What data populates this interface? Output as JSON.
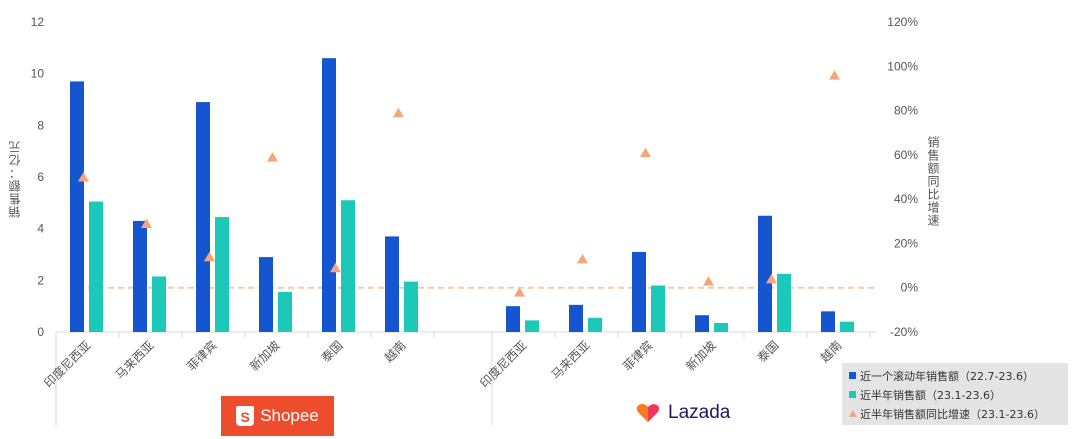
{
  "chart_data": {
    "type": "bar",
    "groups": [
      {
        "name": "Shopee",
        "categories": [
          "印度尼西亚",
          "马来西亚",
          "菲律宾",
          "新加坡",
          "泰国",
          "越南"
        ],
        "rolling_sales": [
          9.7,
          4.3,
          8.9,
          2.9,
          10.6,
          3.7
        ],
        "half_year_sales": [
          5.05,
          2.15,
          4.45,
          1.55,
          5.1,
          1.95
        ],
        "growth_pct": [
          50,
          29,
          14,
          59,
          9,
          79
        ]
      },
      {
        "name": "Lazada",
        "categories": [
          "印度尼西亚",
          "马来西亚",
          "菲律宾",
          "新加坡",
          "泰国",
          "越南"
        ],
        "rolling_sales": [
          1.0,
          1.05,
          3.1,
          0.65,
          4.5,
          0.8
        ],
        "half_year_sales": [
          0.45,
          0.55,
          1.8,
          0.35,
          2.25,
          0.4
        ],
        "growth_pct": [
          -2,
          13,
          61,
          3,
          4,
          96
        ]
      }
    ],
    "series": [
      {
        "name": "近一个滚动年销售额（22.7-23.6）",
        "key": "rolling_sales",
        "color": "#1555d0",
        "kind": "bar"
      },
      {
        "name": "近半年销售额（23.1-23.6）",
        "key": "half_year_sales",
        "color": "#1cc8b8",
        "kind": "bar"
      },
      {
        "name": "近半年销售额同比增速（23.1-23.6）",
        "key": "growth_pct",
        "color": "#f4a77a",
        "kind": "scatter"
      }
    ],
    "ylabel": "销售额：亿元",
    "y2label": "销售额同比增速",
    "ylim": [
      0,
      12
    ],
    "yticks": [
      "0",
      "2",
      "4",
      "6",
      "8",
      "10",
      "12"
    ],
    "y2lim": [
      -20,
      120
    ],
    "y2ticks": [
      "-20%",
      "0%",
      "20%",
      "40%",
      "60%",
      "80%",
      "100%",
      "120%"
    ],
    "reference_line_pct": 0,
    "reference_color": "#f9c9a6",
    "legend_position": "bottom-right",
    "grid": false
  },
  "platforms": {
    "shopee": {
      "label": "Shopee",
      "bag_letter": "S",
      "color": "#ee4d2d"
    },
    "lazada": {
      "label": "Lazada"
    }
  }
}
